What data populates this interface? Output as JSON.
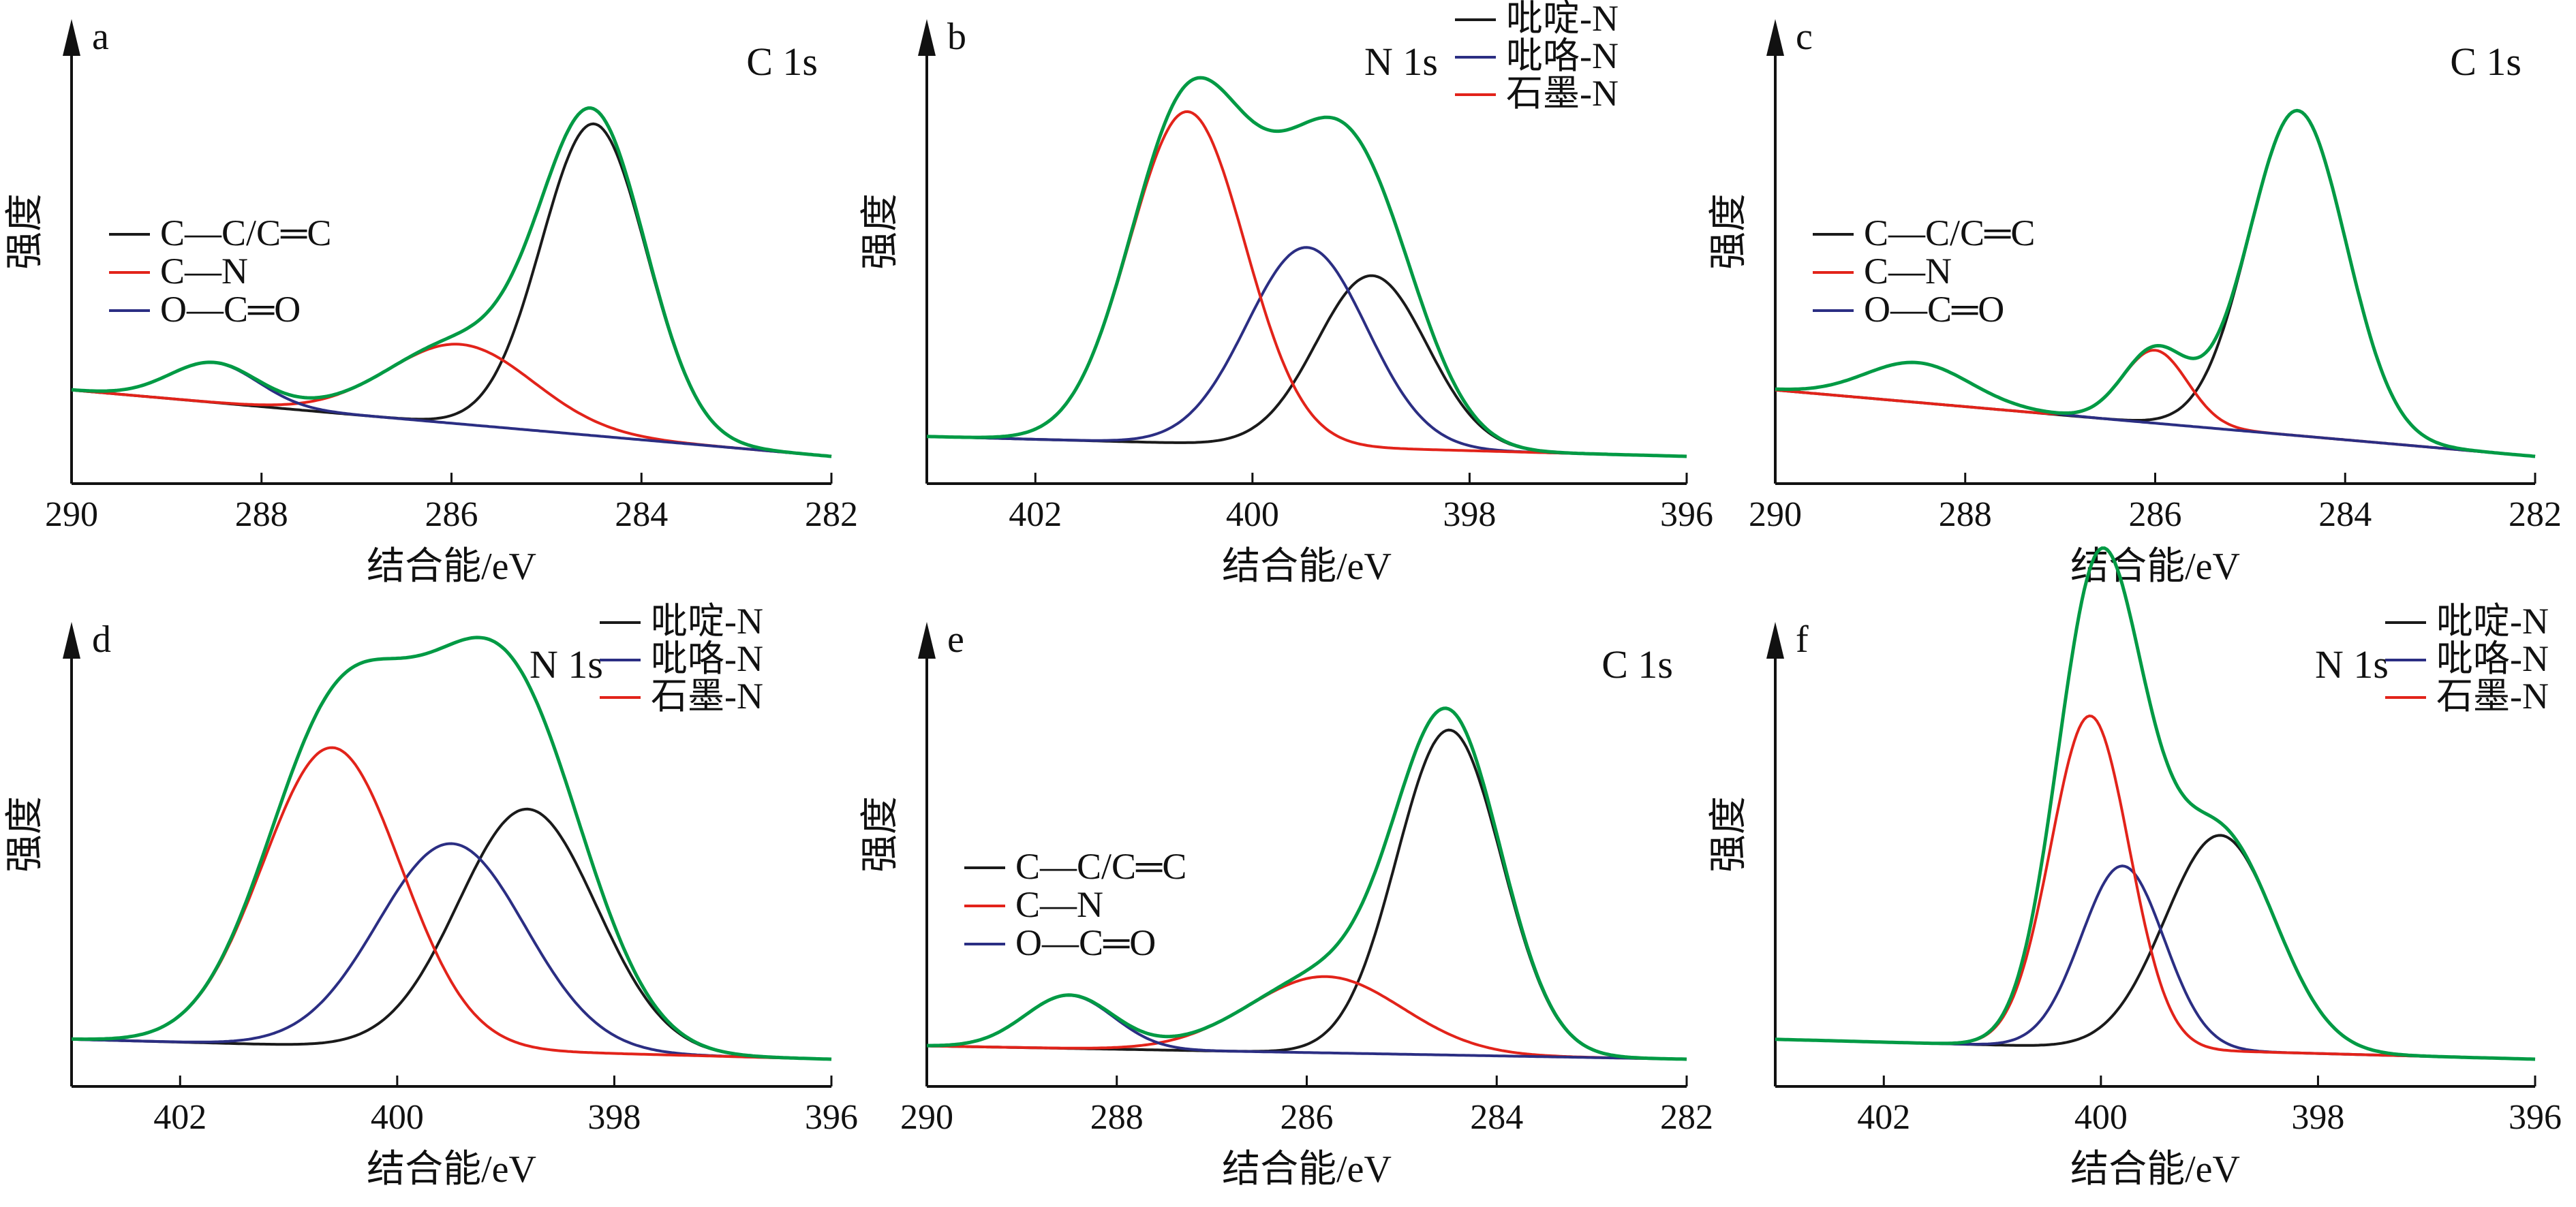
{
  "colors": {
    "axis": "#111111",
    "black": "#1a1a1a",
    "red": "#e2231a",
    "navy": "#2b2e83",
    "green": "#009a44"
  },
  "chart_data": [
    {
      "id": "a",
      "panel_label": "a",
      "type": "line",
      "title": "C 1s",
      "xlabel": "结合能/eV",
      "ylabel": "强度",
      "xlim": [
        290,
        282
      ],
      "ylim": [
        0,
        1.15
      ],
      "xticks": [
        "290",
        "288",
        "286",
        "284",
        "282"
      ],
      "grid": false,
      "legend_position": "left",
      "baseline": [
        0.2,
        0.0
      ],
      "envelope_name": "",
      "series": [
        {
          "name": "C—C/C═C",
          "color": "black",
          "peaks": [
            {
              "center": 284.5,
              "height": 0.94,
              "fwhm": 1.3
            }
          ]
        },
        {
          "name": "C—N",
          "color": "red",
          "peaks": [
            {
              "center": 285.9,
              "height": 0.24,
              "fwhm": 1.8
            }
          ]
        },
        {
          "name": "O—C═O",
          "color": "navy",
          "peaks": [
            {
              "center": 288.5,
              "height": 0.12,
              "fwhm": 1.1
            }
          ]
        }
      ]
    },
    {
      "id": "b",
      "panel_label": "b",
      "type": "line",
      "title": "N 1s",
      "xlabel": "结合能/eV",
      "ylabel": "强度",
      "xlim": [
        403.0,
        396.0
      ],
      "ylim": [
        0,
        1.15
      ],
      "xticks": [
        "402",
        "400",
        "398",
        "396"
      ],
      "grid": false,
      "legend_position": "top-right",
      "baseline": [
        0.06,
        0.0
      ],
      "envelope_name": "",
      "series": [
        {
          "name": "吡啶-N",
          "color": "black",
          "peaks": [
            {
              "center": 398.9,
              "height": 0.52,
              "fwhm": 1.2
            }
          ]
        },
        {
          "name": "吡咯-N",
          "color": "navy",
          "peaks": [
            {
              "center": 399.5,
              "height": 0.6,
              "fwhm": 1.3
            }
          ]
        },
        {
          "name": "石墨-N",
          "color": "red",
          "peaks": [
            {
              "center": 400.6,
              "height": 1.0,
              "fwhm": 1.25
            }
          ]
        }
      ]
    },
    {
      "id": "c",
      "panel_label": "c",
      "type": "line",
      "title": "C 1s",
      "xlabel": "结合能/eV",
      "ylabel": "强度",
      "xlim": [
        290,
        282
      ],
      "ylim": [
        0,
        1.15
      ],
      "xticks": [
        "290",
        "288",
        "286",
        "284",
        "282"
      ],
      "grid": false,
      "legend_position": "left",
      "baseline": [
        0.2,
        0.0
      ],
      "envelope_name": "",
      "series": [
        {
          "name": "C—C/C═C",
          "color": "black",
          "peaks": [
            {
              "center": 284.5,
              "height": 0.98,
              "fwhm": 1.2
            }
          ]
        },
        {
          "name": "C—N",
          "color": "red",
          "peaks": [
            {
              "center": 286.0,
              "height": 0.22,
              "fwhm": 0.8
            }
          ]
        },
        {
          "name": "O—C═O",
          "color": "navy",
          "peaks": [
            {
              "center": 288.5,
              "height": 0.12,
              "fwhm": 1.3
            }
          ]
        }
      ]
    },
    {
      "id": "d",
      "panel_label": "d",
      "type": "line",
      "title": "N 1s",
      "xlabel": "结合能/eV",
      "ylabel": "强度",
      "xlim": [
        403.0,
        396.0
      ],
      "ylim": [
        0,
        1.15
      ],
      "xticks": [
        "402",
        "400",
        "398",
        "396"
      ],
      "grid": false,
      "legend_position": "top-right",
      "baseline": [
        0.06,
        0.0
      ],
      "envelope_name": "",
      "series": [
        {
          "name": "吡啶-N",
          "color": "black",
          "peaks": [
            {
              "center": 398.8,
              "height": 0.73,
              "fwhm": 1.5
            }
          ]
        },
        {
          "name": "吡咯-N",
          "color": "navy",
          "peaks": [
            {
              "center": 399.5,
              "height": 0.62,
              "fwhm": 1.6
            }
          ]
        },
        {
          "name": "石墨-N",
          "color": "red",
          "peaks": [
            {
              "center": 400.6,
              "height": 0.9,
              "fwhm": 1.5
            }
          ]
        }
      ]
    },
    {
      "id": "e",
      "panel_label": "e",
      "type": "line",
      "title": "C 1s",
      "xlabel": "结合能/eV",
      "ylabel": "强度",
      "xlim": [
        290,
        282
      ],
      "ylim": [
        0,
        1.15
      ],
      "xticks": [
        "290",
        "288",
        "286",
        "284",
        "282"
      ],
      "grid": false,
      "legend_position": "left",
      "baseline": [
        0.04,
        0.0
      ],
      "envelope_name": "",
      "series": [
        {
          "name": "C—C/C═C",
          "color": "black",
          "peaks": [
            {
              "center": 284.5,
              "height": 0.98,
              "fwhm": 1.3
            }
          ]
        },
        {
          "name": "C—N",
          "color": "red",
          "peaks": [
            {
              "center": 285.8,
              "height": 0.23,
              "fwhm": 1.9
            }
          ]
        },
        {
          "name": "O—C═O",
          "color": "navy",
          "peaks": [
            {
              "center": 288.5,
              "height": 0.16,
              "fwhm": 1.1
            }
          ]
        }
      ]
    },
    {
      "id": "f",
      "panel_label": "f",
      "type": "line",
      "title": "N 1s",
      "xlabel": "结合能/eV",
      "ylabel": "强度",
      "xlim": [
        403.0,
        396.0
      ],
      "ylim": [
        0,
        1.15
      ],
      "xticks": [
        "402",
        "400",
        "398",
        "396"
      ],
      "grid": false,
      "legend_position": "top-right",
      "baseline": [
        0.06,
        0.0
      ],
      "envelope_name": "",
      "series": [
        {
          "name": "吡啶-N",
          "color": "black",
          "peaks": [
            {
              "center": 398.9,
              "height": 0.65,
              "fwhm": 1.2
            }
          ]
        },
        {
          "name": "吡咯-N",
          "color": "navy",
          "peaks": [
            {
              "center": 399.8,
              "height": 0.55,
              "fwhm": 0.9
            }
          ]
        },
        {
          "name": "石墨-N",
          "color": "red",
          "peaks": [
            {
              "center": 400.1,
              "height": 1.0,
              "fwhm": 0.85
            }
          ]
        }
      ]
    }
  ]
}
